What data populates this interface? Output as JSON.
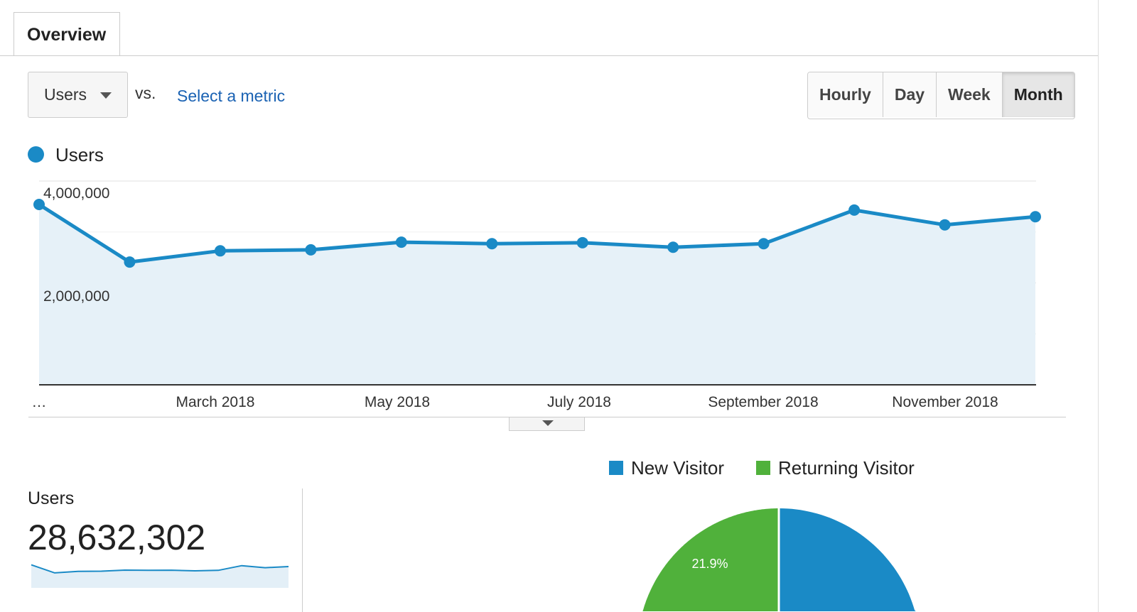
{
  "tabs": [
    {
      "label": "Overview",
      "active": true
    }
  ],
  "controls": {
    "metric": "Users",
    "vs": "vs.",
    "select_metric": "Select a metric",
    "granularity": [
      "Hourly",
      "Day",
      "Week",
      "Month"
    ],
    "selected_granularity": "Month"
  },
  "colors": {
    "accent": "#1a8ac6",
    "new": "#1a8ac6",
    "returning": "#50b13b"
  },
  "chart_data": {
    "type": "line",
    "legend": "Users",
    "x": [
      "Jan 2018",
      "Feb 2018",
      "Mar 2018",
      "Apr 2018",
      "May 2018",
      "Jun 2018",
      "Jul 2018",
      "Aug 2018",
      "Sep 2018",
      "Oct 2018",
      "Nov 2018",
      "Dec 2018"
    ],
    "values": [
      3540000,
      2410000,
      2630000,
      2650000,
      2800000,
      2770000,
      2790000,
      2700000,
      2770000,
      3430000,
      3140000,
      3300000
    ],
    "ylim": [
      0,
      4000000
    ],
    "yticks": [
      "4,000,000",
      "2,000,000"
    ],
    "xticks": [
      "…",
      "March 2018",
      "May 2018",
      "July 2018",
      "September 2018",
      "November 2018"
    ]
  },
  "summary": {
    "label": "Users",
    "value": "28,632,302"
  },
  "pie": {
    "legend": [
      "New Visitor",
      "Returning Visitor"
    ],
    "returning_pct": 21.9,
    "returning_label": "21.9%"
  }
}
